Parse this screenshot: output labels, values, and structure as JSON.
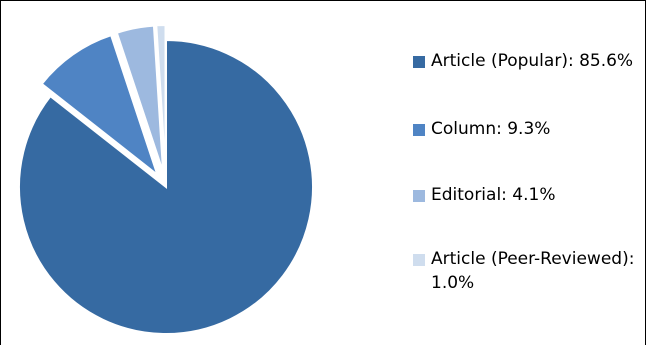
{
  "chart_data": {
    "type": "pie",
    "title": "",
    "legend_position": "right",
    "start_angle": "12 o'clock, clockwise",
    "exploded_slices": [
      "Column",
      "Editorial",
      "Article (Peer-Reviewed)"
    ],
    "slices": [
      {
        "name": "Article (Popular)",
        "value": 85.6,
        "label": "Article (Popular): 85.6%",
        "color": "#366AA2",
        "icon": "square-swatch-icon"
      },
      {
        "name": "Column",
        "value": 9.3,
        "label": "Column: 9.3%",
        "color": "#4F84C4",
        "icon": "square-swatch-icon"
      },
      {
        "name": "Editorial",
        "value": 4.1,
        "label": "Editorial: 4.1%",
        "color": "#9DB9DF",
        "icon": "square-swatch-icon"
      },
      {
        "name": "Article (Peer-Reviewed)",
        "value": 1.0,
        "label": "Article (Peer-Reviewed): 1.0%",
        "color": "#CFDDEE",
        "icon": "square-swatch-icon"
      }
    ]
  }
}
